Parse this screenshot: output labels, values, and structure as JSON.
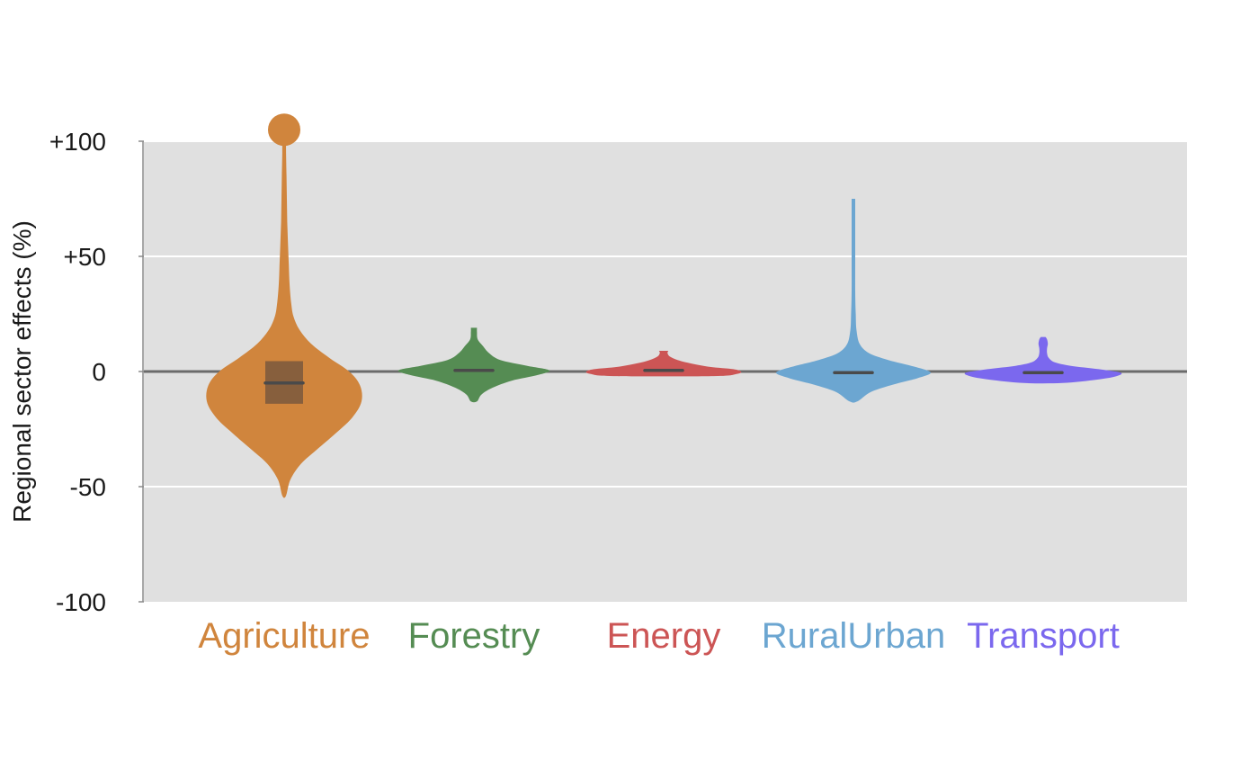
{
  "chart_data": {
    "type": "violin",
    "ylabel": "Regional sector effects (%)",
    "ylim": [
      -100,
      100
    ],
    "yticks": [
      {
        "value": 100,
        "label": "+100"
      },
      {
        "value": 50,
        "label": "+50"
      },
      {
        "value": 0,
        "label": "0"
      },
      {
        "value": -50,
        "label": "-50"
      },
      {
        "value": -100,
        "label": "-100"
      }
    ],
    "grid": true,
    "zero_line": true,
    "categories": [
      "Agriculture",
      "Forestry",
      "Energy",
      "RuralUrban",
      "Transport"
    ],
    "series": [
      {
        "name": "Agriculture",
        "color": "#d0853d",
        "median": -5,
        "q1": -14,
        "q3": 4.5,
        "min": -54,
        "max": 100,
        "outlier": 105,
        "density": [
          [
            -54,
            0.02
          ],
          [
            -47,
            0.08
          ],
          [
            -40,
            0.22
          ],
          [
            -34,
            0.42
          ],
          [
            -27,
            0.66
          ],
          [
            -20,
            0.88
          ],
          [
            -13,
            1.0
          ],
          [
            -6,
            0.98
          ],
          [
            0,
            0.84
          ],
          [
            6,
            0.58
          ],
          [
            12,
            0.35
          ],
          [
            18,
            0.2
          ],
          [
            24,
            0.12
          ],
          [
            30,
            0.09
          ],
          [
            38,
            0.07
          ],
          [
            46,
            0.06
          ],
          [
            55,
            0.05
          ],
          [
            65,
            0.04
          ],
          [
            75,
            0.035
          ],
          [
            85,
            0.03
          ],
          [
            95,
            0.025
          ],
          [
            100,
            0.02
          ]
        ]
      },
      {
        "name": "Forestry",
        "color": "#558c53",
        "median": 0.5,
        "min": -13,
        "max": 19,
        "density": [
          [
            -13,
            0.04
          ],
          [
            -10,
            0.1
          ],
          [
            -7,
            0.25
          ],
          [
            -4,
            0.5
          ],
          [
            -1.5,
            0.85
          ],
          [
            0.5,
            1.0
          ],
          [
            2.5,
            0.7
          ],
          [
            5,
            0.35
          ],
          [
            8,
            0.2
          ],
          [
            11,
            0.12
          ],
          [
            14,
            0.05
          ],
          [
            17,
            0.04
          ],
          [
            19,
            0.04
          ]
        ]
      },
      {
        "name": "Energy",
        "color": "#cc5555",
        "median": 0.5,
        "min": -2,
        "max": 9,
        "density": [
          [
            -2,
            0.65
          ],
          [
            -1,
            0.95
          ],
          [
            0,
            1.0
          ],
          [
            1,
            0.9
          ],
          [
            2,
            0.6
          ],
          [
            3.5,
            0.35
          ],
          [
            5,
            0.18
          ],
          [
            6.5,
            0.08
          ],
          [
            8,
            0.05
          ],
          [
            9,
            0.06
          ]
        ]
      },
      {
        "name": "RuralUrban",
        "color": "#6ca6d1",
        "median": -0.5,
        "min": -13,
        "max": 75,
        "density": [
          [
            -13,
            0.05
          ],
          [
            -9,
            0.22
          ],
          [
            -6,
            0.48
          ],
          [
            -3,
            0.82
          ],
          [
            -0.5,
            1.0
          ],
          [
            2,
            0.8
          ],
          [
            5,
            0.45
          ],
          [
            8,
            0.2
          ],
          [
            12,
            0.08
          ],
          [
            18,
            0.04
          ],
          [
            25,
            0.03
          ],
          [
            35,
            0.02
          ],
          [
            50,
            0.02
          ],
          [
            65,
            0.02
          ],
          [
            75,
            0.02
          ]
        ]
      },
      {
        "name": "Transport",
        "color": "#7b68ee",
        "median": -0.5,
        "min": -5,
        "max": 15,
        "density": [
          [
            -5,
            0.25
          ],
          [
            -3.5,
            0.7
          ],
          [
            -2,
            0.95
          ],
          [
            -0.5,
            1.0
          ],
          [
            1,
            0.72
          ],
          [
            2.5,
            0.35
          ],
          [
            4,
            0.15
          ],
          [
            6,
            0.07
          ],
          [
            8,
            0.05
          ],
          [
            10,
            0.05
          ],
          [
            12,
            0.06
          ],
          [
            14,
            0.05
          ],
          [
            15,
            0.03
          ]
        ]
      }
    ]
  },
  "colors": {
    "panel_bg": "#e0e0e0",
    "grid": "#ffffff",
    "zero_line": "#6b6b6b",
    "median_line": "#4a4a4a",
    "iqr_box": "#875f3d"
  }
}
